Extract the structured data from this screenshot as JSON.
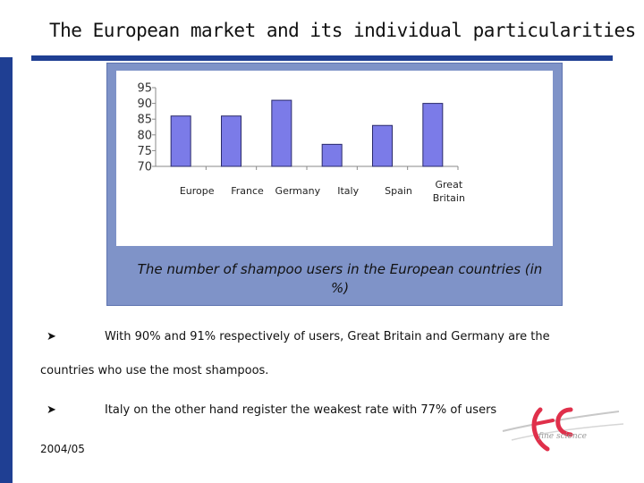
{
  "header": {
    "title": "The European market and its individual particularities"
  },
  "chart_data": {
    "type": "bar",
    "categories": [
      "Europe",
      "France",
      "Germany",
      "Italy",
      "Spain",
      "Great Britain"
    ],
    "values": [
      86,
      86,
      91,
      77,
      83,
      90
    ],
    "ylim": [
      70,
      95
    ],
    "yticks": [
      70,
      75,
      80,
      85,
      90,
      95
    ],
    "grid": false,
    "bar_color": "#7b7be8",
    "title": "",
    "xlabel": "",
    "ylabel": ""
  },
  "caption": "The number of shampoo users in the European countries (in %)",
  "bullets": [
    {
      "line1": "With 90% and 91% respectively of users, Great Britain and Germany are the",
      "line2": "countries who use the most shampoos."
    },
    {
      "line1": "Italy on the other hand register the weakest rate with 77% of users"
    }
  ],
  "footer": {
    "date": "2004/05"
  },
  "logo": {
    "text": "fine science"
  },
  "colors": {
    "accent": "#1f3f93",
    "panel": "#7f93c8"
  }
}
